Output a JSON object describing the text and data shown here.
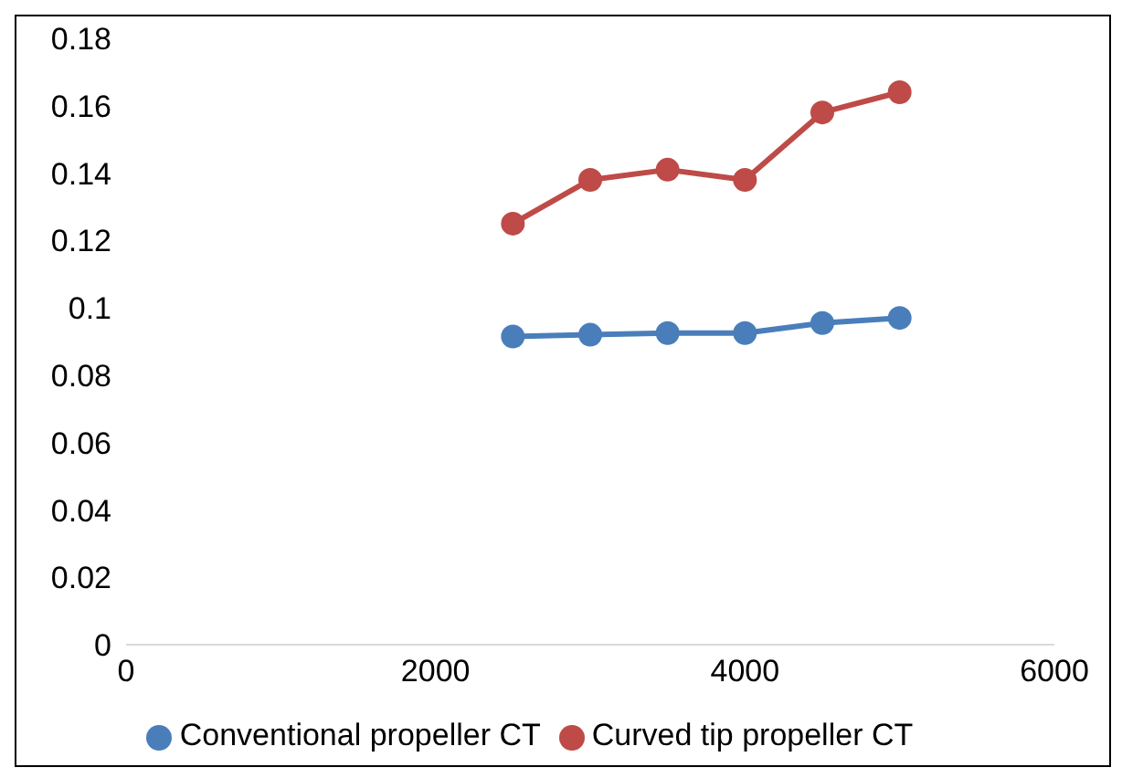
{
  "chart_data": {
    "type": "line",
    "x": [
      2500,
      3000,
      3500,
      4000,
      4500,
      5000
    ],
    "series": [
      {
        "name": "Conventional propeller CT",
        "color": "#4a7ebb",
        "values": [
          0.0915,
          0.092,
          0.0925,
          0.0925,
          0.0955,
          0.097
        ]
      },
      {
        "name": "Curved tip propeller CT",
        "color": "#be4b48",
        "values": [
          0.125,
          0.138,
          0.141,
          0.138,
          0.158,
          0.164
        ]
      }
    ],
    "xlim": [
      0,
      6000
    ],
    "xticks": [
      0,
      2000,
      4000,
      6000
    ],
    "ylim": [
      0,
      0.18
    ],
    "yticks": [
      0,
      0.02,
      0.04,
      0.06,
      0.08,
      0.1,
      0.12,
      0.14,
      0.16,
      0.18
    ],
    "grid": false,
    "legend": "bottom",
    "marker": "circle",
    "line_style": "solid"
  }
}
